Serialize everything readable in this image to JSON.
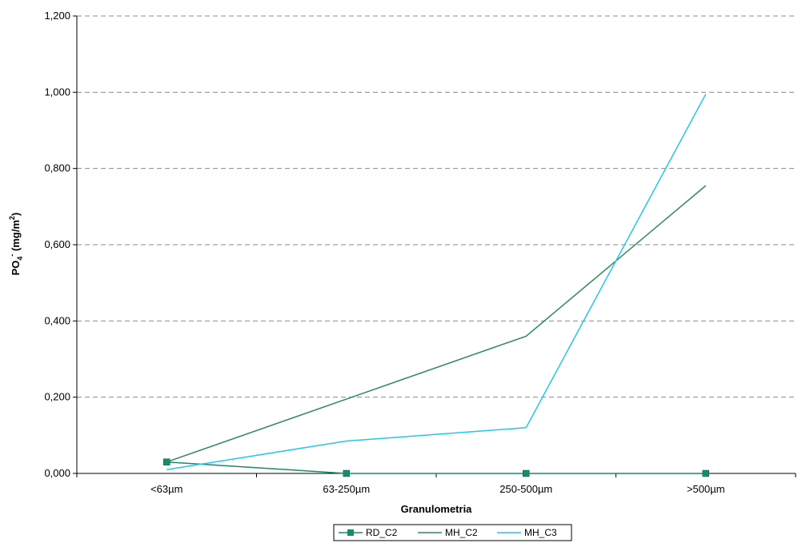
{
  "chart_data": {
    "type": "line",
    "title": "",
    "xlabel": "Granulometria",
    "ylabel": {
      "main": "PO",
      "sub": "4",
      "sup": "-",
      "rest": " (mg/m",
      "sup2": "2",
      "close": ")"
    },
    "categories": [
      "<63µm",
      "63-250µm",
      "250-500µm",
      ">500µm"
    ],
    "ylim": [
      0,
      1.2
    ],
    "yticks": [
      "0,000",
      "0,200",
      "0,400",
      "0,600",
      "0,800",
      "1,000",
      "1,200"
    ],
    "ytick_values": [
      0,
      0.2,
      0.4,
      0.6,
      0.8,
      1.0,
      1.2
    ],
    "grid": "horizontal-dashed",
    "legend_position": "bottom",
    "series": [
      {
        "name": "RD_C2",
        "values": [
          0.03,
          0.0,
          0.0,
          0.0
        ],
        "color": "#1a8a6e",
        "marker": "square"
      },
      {
        "name": "MH_C2",
        "values": [
          0.03,
          0.195,
          0.36,
          0.755
        ],
        "color": "#2e8b57",
        "marker": "none"
      },
      {
        "name": "MH_C3",
        "values": [
          0.01,
          0.085,
          0.12,
          0.995
        ],
        "color": "#22c7ee",
        "marker": "none"
      }
    ]
  }
}
